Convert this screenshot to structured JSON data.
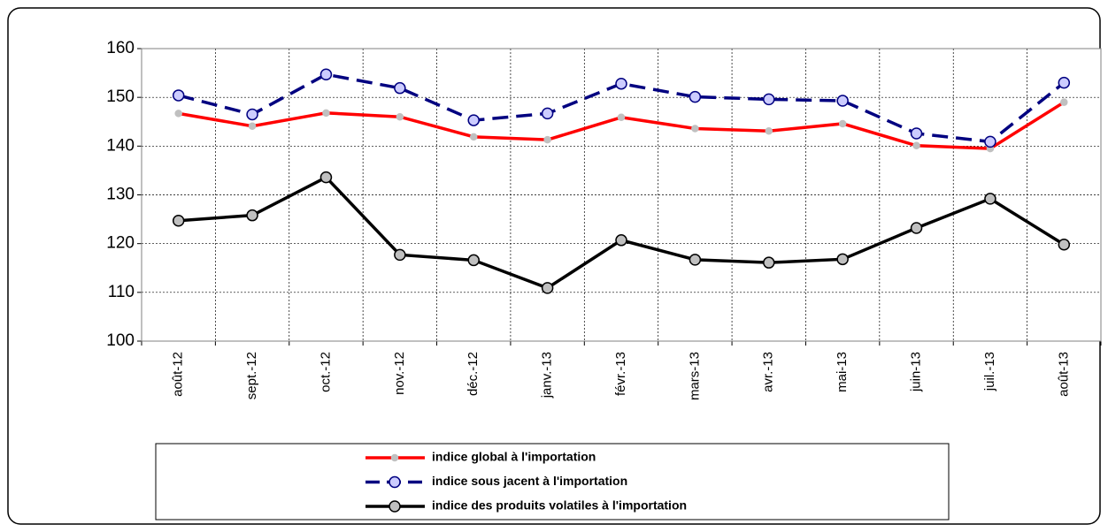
{
  "chart_data": {
    "type": "line",
    "categories": [
      "août-12",
      "sept.-12",
      "oct.-12",
      "nov.-12",
      "déc.-12",
      "janv.-13",
      "févr.-13",
      "mars-13",
      "avr.-13",
      "mai-13",
      "juin-13",
      "juil.-13",
      "août-13"
    ],
    "series": [
      {
        "name": "indice global à l'importation",
        "color": "#ff0000",
        "line_style": "solid",
        "marker_fill": "#c0c0c0",
        "values": [
          146.7,
          144.1,
          146.8,
          146.0,
          141.9,
          141.3,
          145.9,
          143.6,
          143.1,
          144.6,
          140.1,
          139.5,
          149.0
        ]
      },
      {
        "name": "indice sous jacent à l'importation",
        "color": "#000080",
        "line_style": "dashed",
        "marker_fill": "#ccccff",
        "values": [
          150.4,
          146.5,
          154.7,
          151.9,
          145.3,
          146.7,
          152.8,
          150.1,
          149.6,
          149.3,
          142.6,
          140.9,
          153.0
        ]
      },
      {
        "name": "indice des produits volatiles à l'importation",
        "color": "#000000",
        "line_style": "solid",
        "marker_fill": "#c0c0c0",
        "values": [
          124.7,
          125.8,
          133.6,
          117.7,
          116.6,
          110.9,
          120.7,
          116.7,
          116.1,
          116.8,
          123.2,
          129.2,
          119.8
        ]
      }
    ],
    "ylim": [
      100,
      160
    ],
    "yticks": [
      100,
      110,
      120,
      130,
      140,
      150,
      160
    ],
    "grid": true
  }
}
